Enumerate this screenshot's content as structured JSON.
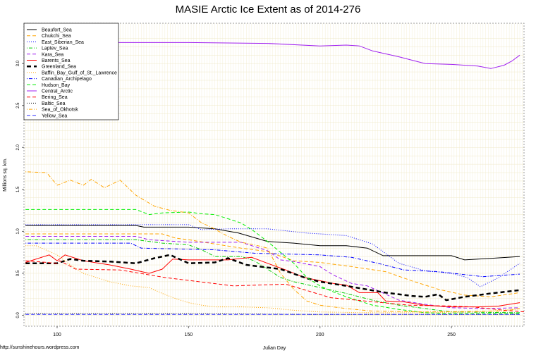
{
  "chart_data": {
    "type": "line",
    "title": "MASIE Arctic Ice Extent as of 2014-276",
    "xlabel": "Julian Day",
    "ylabel": "Millions sq. km.",
    "credit": "http://sunshinehours.wordpress.com",
    "xlim": [
      87.4,
      277.6
    ],
    "ylim": [
      -0.13,
      3.48
    ],
    "x_ticks": [
      100,
      150,
      200,
      250
    ],
    "y_ticks": [
      "0.0",
      "0.5",
      "1.0",
      "1.5",
      "2.0",
      "2.5",
      "3.0"
    ],
    "grid": true,
    "legend_position": "top-left",
    "series": [
      {
        "name": "Beaufort_Sea",
        "color": "#000000",
        "dash": "solid",
        "points": [
          [
            88,
            1.07
          ],
          [
            130,
            1.07
          ],
          [
            133,
            1.05
          ],
          [
            150,
            1.05
          ],
          [
            160,
            1.03
          ],
          [
            169,
            0.98
          ],
          [
            180,
            0.88
          ],
          [
            190,
            0.86
          ],
          [
            200,
            0.83
          ],
          [
            210,
            0.83
          ],
          [
            218,
            0.8
          ],
          [
            224,
            0.71
          ],
          [
            250,
            0.71
          ],
          [
            255,
            0.66
          ],
          [
            266,
            0.68
          ],
          [
            276,
            0.7
          ]
        ]
      },
      {
        "name": "Chukchi_Sea",
        "color": "#ffa500",
        "dash": "dashed",
        "points": [
          [
            88,
            0.97
          ],
          [
            140,
            0.97
          ],
          [
            145,
            0.92
          ],
          [
            150,
            0.9
          ],
          [
            160,
            0.85
          ],
          [
            170,
            0.8
          ],
          [
            180,
            0.76
          ],
          [
            190,
            0.65
          ],
          [
            200,
            0.63
          ],
          [
            212,
            0.58
          ],
          [
            225,
            0.52
          ],
          [
            235,
            0.41
          ],
          [
            245,
            0.31
          ],
          [
            255,
            0.24
          ],
          [
            265,
            0.22
          ],
          [
            276,
            0.27
          ]
        ]
      },
      {
        "name": "East_Siberian_Sea",
        "color": "#0000ff",
        "dash": "dotted",
        "points": [
          [
            88,
            1.08
          ],
          [
            150,
            1.08
          ],
          [
            155,
            1.02
          ],
          [
            165,
            1.03
          ],
          [
            180,
            1.03
          ],
          [
            195,
            0.98
          ],
          [
            210,
            0.95
          ],
          [
            220,
            0.85
          ],
          [
            230,
            0.62
          ],
          [
            240,
            0.53
          ],
          [
            250,
            0.5
          ],
          [
            256,
            0.45
          ],
          [
            261,
            0.34
          ],
          [
            268,
            0.45
          ],
          [
            276,
            0.62
          ]
        ]
      },
      {
        "name": "Laptev_Sea",
        "color": "#00cc00",
        "dash": "dotdash",
        "points": [
          [
            88,
            0.9
          ],
          [
            130,
            0.9
          ],
          [
            140,
            0.86
          ],
          [
            150,
            0.84
          ],
          [
            155,
            0.78
          ],
          [
            160,
            0.7
          ],
          [
            170,
            0.7
          ],
          [
            175,
            0.65
          ],
          [
            180,
            0.55
          ],
          [
            185,
            0.45
          ],
          [
            190,
            0.4
          ],
          [
            200,
            0.33
          ],
          [
            210,
            0.26
          ],
          [
            220,
            0.18
          ],
          [
            230,
            0.12
          ],
          [
            240,
            0.08
          ],
          [
            250,
            0.04
          ],
          [
            276,
            0.03
          ]
        ]
      },
      {
        "name": "Kara_Sea",
        "color": "#a020f0",
        "dash": "dashed",
        "points": [
          [
            88,
            0.94
          ],
          [
            130,
            0.94
          ],
          [
            135,
            0.9
          ],
          [
            150,
            0.87
          ],
          [
            170,
            0.87
          ],
          [
            180,
            0.77
          ],
          [
            185,
            0.66
          ],
          [
            190,
            0.64
          ],
          [
            200,
            0.58
          ],
          [
            205,
            0.48
          ],
          [
            212,
            0.38
          ],
          [
            218,
            0.35
          ],
          [
            230,
            0.18
          ],
          [
            240,
            0.13
          ],
          [
            250,
            0.09
          ],
          [
            262,
            0.08
          ],
          [
            276,
            0.09
          ]
        ]
      },
      {
        "name": "Barents_Sea",
        "color": "#ff0000",
        "dash": "solid",
        "points": [
          [
            88,
            0.63
          ],
          [
            97,
            0.72
          ],
          [
            100,
            0.65
          ],
          [
            103,
            0.72
          ],
          [
            110,
            0.65
          ],
          [
            120,
            0.6
          ],
          [
            128,
            0.55
          ],
          [
            135,
            0.5
          ],
          [
            140,
            0.55
          ],
          [
            144,
            0.67
          ],
          [
            150,
            0.66
          ],
          [
            165,
            0.66
          ],
          [
            174,
            0.69
          ],
          [
            180,
            0.62
          ],
          [
            187,
            0.54
          ],
          [
            194,
            0.45
          ],
          [
            205,
            0.38
          ],
          [
            210,
            0.36
          ],
          [
            215,
            0.27
          ],
          [
            222,
            0.27
          ],
          [
            225,
            0.17
          ],
          [
            232,
            0.16
          ],
          [
            240,
            0.12
          ],
          [
            250,
            0.1
          ],
          [
            260,
            0.1
          ],
          [
            268,
            0.11
          ],
          [
            276,
            0.15
          ]
        ]
      },
      {
        "name": "Greenland_Sea",
        "color": "#000000",
        "dash": "thickdash",
        "points": [
          [
            88,
            0.62
          ],
          [
            100,
            0.62
          ],
          [
            105,
            0.67
          ],
          [
            110,
            0.65
          ],
          [
            120,
            0.64
          ],
          [
            130,
            0.62
          ],
          [
            137,
            0.68
          ],
          [
            143,
            0.72
          ],
          [
            150,
            0.62
          ],
          [
            160,
            0.63
          ],
          [
            165,
            0.68
          ],
          [
            172,
            0.6
          ],
          [
            185,
            0.55
          ],
          [
            195,
            0.44
          ],
          [
            200,
            0.4
          ],
          [
            210,
            0.35
          ],
          [
            225,
            0.27
          ],
          [
            235,
            0.23
          ],
          [
            240,
            0.22
          ],
          [
            245,
            0.25
          ],
          [
            248,
            0.18
          ],
          [
            255,
            0.22
          ],
          [
            265,
            0.26
          ],
          [
            276,
            0.3
          ]
        ]
      },
      {
        "name": "Baffin_Bay_Gulf_of_St._Lawrence",
        "color": "#ffa500",
        "dash": "dotted",
        "points": [
          [
            88,
            0.83
          ],
          [
            92,
            0.83
          ],
          [
            100,
            0.72
          ],
          [
            105,
            0.6
          ],
          [
            110,
            0.5
          ],
          [
            115,
            0.45
          ],
          [
            120,
            0.4
          ],
          [
            128,
            0.35
          ],
          [
            135,
            0.33
          ],
          [
            140,
            0.26
          ],
          [
            145,
            0.2
          ],
          [
            150,
            0.15
          ],
          [
            155,
            0.12
          ],
          [
            160,
            0.1
          ],
          [
            170,
            0.1
          ],
          [
            180,
            0.09
          ],
          [
            190,
            0.06
          ],
          [
            200,
            0.04
          ],
          [
            220,
            0.03
          ],
          [
            240,
            0.03
          ],
          [
            260,
            0.04
          ],
          [
            276,
            0.08
          ]
        ]
      },
      {
        "name": "Canadian_Archipelago",
        "color": "#0000ff",
        "dash": "dotdash",
        "points": [
          [
            88,
            0.86
          ],
          [
            128,
            0.86
          ],
          [
            132,
            0.8
          ],
          [
            160,
            0.78
          ],
          [
            175,
            0.74
          ],
          [
            200,
            0.72
          ],
          [
            212,
            0.69
          ],
          [
            222,
            0.62
          ],
          [
            232,
            0.54
          ],
          [
            245,
            0.52
          ],
          [
            262,
            0.46
          ],
          [
            276,
            0.49
          ]
        ]
      },
      {
        "name": "Hudson_Bay",
        "color": "#00ee00",
        "dash": "dashed",
        "points": [
          [
            88,
            1.26
          ],
          [
            130,
            1.26
          ],
          [
            135,
            1.2
          ],
          [
            140,
            1.22
          ],
          [
            150,
            1.23
          ],
          [
            155,
            1.21
          ],
          [
            160,
            1.2
          ],
          [
            165,
            1.15
          ],
          [
            170,
            1.1
          ],
          [
            175,
            1.0
          ],
          [
            180,
            0.88
          ],
          [
            185,
            0.75
          ],
          [
            190,
            0.62
          ],
          [
            195,
            0.45
          ],
          [
            200,
            0.35
          ],
          [
            205,
            0.28
          ],
          [
            210,
            0.22
          ],
          [
            215,
            0.17
          ],
          [
            220,
            0.12
          ],
          [
            230,
            0.07
          ],
          [
            240,
            0.03
          ],
          [
            250,
            0.02
          ],
          [
            276,
            0.02
          ]
        ]
      },
      {
        "name": "Central_Arctic",
        "color": "#a020f0",
        "dash": "solid",
        "points": [
          [
            88,
            3.24
          ],
          [
            95,
            3.25
          ],
          [
            150,
            3.25
          ],
          [
            180,
            3.24
          ],
          [
            200,
            3.21
          ],
          [
            210,
            3.22
          ],
          [
            215,
            3.21
          ],
          [
            220,
            3.15
          ],
          [
            230,
            3.08
          ],
          [
            240,
            3.0
          ],
          [
            250,
            2.99
          ],
          [
            260,
            2.97
          ],
          [
            265,
            2.94
          ],
          [
            270,
            2.98
          ],
          [
            273,
            3.03
          ],
          [
            276,
            3.1
          ]
        ]
      },
      {
        "name": "Bering_Sea",
        "color": "#ff0000",
        "dash": "dashed",
        "points": [
          [
            88,
            0.65
          ],
          [
            100,
            0.62
          ],
          [
            101,
            0.65
          ],
          [
            107,
            0.55
          ],
          [
            124,
            0.54
          ],
          [
            141,
            0.45
          ],
          [
            167,
            0.35
          ],
          [
            187,
            0.37
          ],
          [
            204,
            0.21
          ],
          [
            227,
            0.14
          ],
          [
            234,
            0.12
          ],
          [
            250,
            0.11
          ],
          [
            258,
            0.1
          ],
          [
            270,
            0.06
          ],
          [
            290,
            0.01
          ]
        ]
      },
      {
        "name": "Baltic_Sea",
        "color": "#000000",
        "dash": "dotted",
        "points": [
          [
            88,
            0.02
          ],
          [
            150,
            0.02
          ],
          [
            200,
            0.01
          ],
          [
            276,
            0.01
          ]
        ]
      },
      {
        "name": "Sea_of_Okhotsk",
        "color": "#ffa500",
        "dash": "dotdash",
        "points": [
          [
            88,
            1.71
          ],
          [
            96,
            1.7
          ],
          [
            100,
            1.55
          ],
          [
            105,
            1.61
          ],
          [
            110,
            1.55
          ],
          [
            113,
            1.62
          ],
          [
            118,
            1.52
          ],
          [
            124,
            1.61
          ],
          [
            130,
            1.43
          ],
          [
            137,
            1.3
          ],
          [
            143,
            1.25
          ],
          [
            150,
            1.22
          ],
          [
            155,
            1.1
          ],
          [
            158,
            1.06
          ],
          [
            165,
            0.94
          ],
          [
            170,
            0.87
          ],
          [
            175,
            0.84
          ],
          [
            180,
            0.8
          ],
          [
            185,
            0.5
          ],
          [
            190,
            0.31
          ],
          [
            195,
            0.17
          ],
          [
            200,
            0.12
          ],
          [
            210,
            0.08
          ],
          [
            220,
            0.05
          ],
          [
            240,
            0.04
          ],
          [
            270,
            0.05
          ],
          [
            276,
            0.08
          ]
        ]
      },
      {
        "name": "Yellow_Sea",
        "color": "#3333ff",
        "dash": "dashed",
        "points": [
          [
            88,
            0.01
          ],
          [
            276,
            0.01
          ]
        ]
      }
    ]
  }
}
